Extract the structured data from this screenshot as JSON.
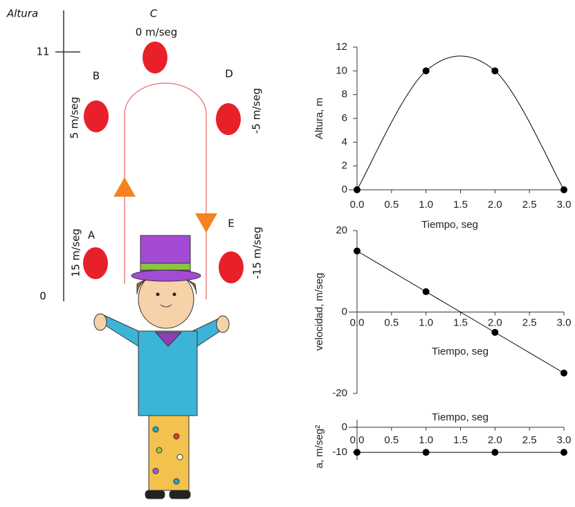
{
  "diagram": {
    "y_axis_label": "Altura",
    "y_ticks": [
      "11",
      "0"
    ],
    "balls": [
      {
        "label": "A",
        "velocity": "15 m/seg"
      },
      {
        "label": "B",
        "velocity": "5 m/seg"
      },
      {
        "label": "C",
        "velocity": "0 m/seg"
      },
      {
        "label": "D",
        "velocity": "-5 m/seg"
      },
      {
        "label": "E",
        "velocity": "-15 m/seg"
      }
    ]
  },
  "chart_data": [
    {
      "type": "line",
      "smooth": true,
      "color": "#000000",
      "x": [
        0,
        1,
        2,
        3
      ],
      "values": [
        0,
        10,
        10,
        0
      ],
      "x_label": "Tiempo, seg",
      "y_label": "Altura, m",
      "xlim": [
        0,
        3
      ],
      "xticks": [
        {
          "value": 0,
          "label": "0.0"
        },
        {
          "value": 0.5,
          "label": "0.5"
        },
        {
          "value": 1,
          "label": "1.0"
        },
        {
          "value": 1.5,
          "label": "1.5"
        },
        {
          "value": 2,
          "label": "2.0"
        },
        {
          "value": 2.5,
          "label": "2.5"
        },
        {
          "value": 3,
          "label": "3.0"
        }
      ],
      "ylim": [
        0,
        12
      ],
      "yticks": [
        0,
        2,
        4,
        6,
        8,
        10,
        12
      ],
      "grid": false
    },
    {
      "type": "line",
      "smooth": false,
      "color": "#000000",
      "x": [
        0,
        1,
        2,
        3
      ],
      "values": [
        15,
        5,
        -5,
        -15
      ],
      "x_label": "Tiempo, seg",
      "y_label": "velocidad, m/seg",
      "xlim": [
        0,
        3
      ],
      "xticks": [
        {
          "value": 0,
          "label": "0.0"
        },
        {
          "value": 0.5,
          "label": "0.5"
        },
        {
          "value": 1,
          "label": "1.0"
        },
        {
          "value": 1.5,
          "label": "1.5"
        },
        {
          "value": 2,
          "label": "2.0"
        },
        {
          "value": 2.5,
          "label": "2.5"
        },
        {
          "value": 3,
          "label": "3.0"
        }
      ],
      "ylim": [
        -20,
        20
      ],
      "yticks": [
        -20,
        0,
        20
      ],
      "grid": false
    },
    {
      "type": "line",
      "smooth": false,
      "color": "#000000",
      "x": [
        0,
        1,
        2,
        3
      ],
      "values": [
        -10,
        -10,
        -10,
        -10
      ],
      "x_label": "Tiempo, seg",
      "y_label": "a, m/seg²",
      "xlim": [
        0,
        3
      ],
      "xticks": [
        {
          "value": 0,
          "label": "0.0"
        },
        {
          "value": 0.5,
          "label": "0.5"
        },
        {
          "value": 1,
          "label": "1.0"
        },
        {
          "value": 1.5,
          "label": "1.5"
        },
        {
          "value": 2,
          "label": "2.0"
        },
        {
          "value": 2.5,
          "label": "2.5"
        },
        {
          "value": 3,
          "label": "3.0"
        }
      ],
      "ylim": [
        -13,
        3
      ],
      "yticks": [
        0,
        -10
      ],
      "grid": false
    }
  ]
}
